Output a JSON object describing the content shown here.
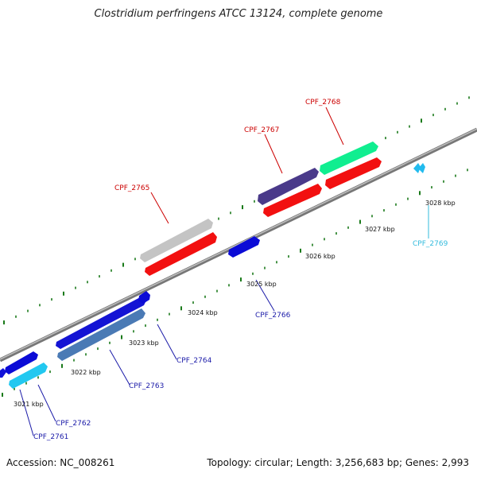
{
  "title": "Clostridium perfringens ATCC 13124, complete genome",
  "accession": "Accession: NC_008261",
  "topology": "Topology: circular; Length: 3,256,683 bp; Genes: 2,993",
  "colors": {
    "backbone": "#888888",
    "tick": "#1a7a1a",
    "label_red": "#cc0000",
    "label_blue": "#1a1aa8",
    "label_cyan": "#33bbdd"
  },
  "kbp_labels": [
    "3021 kbp",
    "3022 kbp",
    "3023 kbp",
    "3024 kbp",
    "3025 kbp",
    "3026 kbp",
    "3027 kbp",
    "3028 kbp"
  ],
  "genes": [
    {
      "id": "CPF_2761",
      "color": "#1a1aa8"
    },
    {
      "id": "CPF_2762",
      "color": "#1a1aa8"
    },
    {
      "id": "CPF_2763",
      "color": "#1a1aa8"
    },
    {
      "id": "CPF_2764",
      "color": "#1a1aa8"
    },
    {
      "id": "CPF_2765",
      "color": "#cc0000"
    },
    {
      "id": "CPF_2766",
      "color": "#1a1aa8"
    },
    {
      "id": "CPF_2767",
      "color": "#cc0000"
    },
    {
      "id": "CPF_2768",
      "color": "#cc0000"
    },
    {
      "id": "CPF_2769",
      "color": "#33bbdd"
    }
  ]
}
